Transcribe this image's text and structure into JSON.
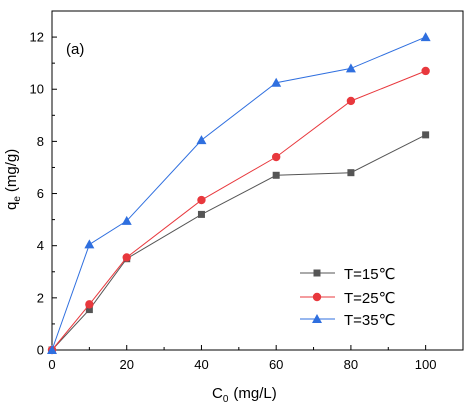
{
  "chart_data": {
    "type": "line",
    "panel_label": "(a)",
    "xlabel": "C",
    "xlabel_sub": "0",
    "xlabel_unit": "(mg/L)",
    "ylabel": "q",
    "ylabel_sub": "e",
    "ylabel_unit": "(mg/g)",
    "xlim": [
      0,
      110
    ],
    "ylim": [
      0,
      13
    ],
    "xticks": [
      0,
      20,
      40,
      60,
      80,
      100
    ],
    "yticks": [
      0,
      2,
      4,
      6,
      8,
      10,
      12
    ],
    "grid": false,
    "legend_position": "bottom-right",
    "series": [
      {
        "name": "T=15℃",
        "color": "#555555",
        "marker": "square",
        "points": [
          [
            0,
            0
          ],
          [
            10,
            1.55
          ],
          [
            20,
            3.5
          ],
          [
            40,
            5.2
          ],
          [
            60,
            6.7
          ],
          [
            80,
            6.8
          ],
          [
            100,
            8.25
          ]
        ]
      },
      {
        "name": "T=25℃",
        "color": "#e8383d",
        "marker": "circle",
        "points": [
          [
            0,
            0
          ],
          [
            10,
            1.75
          ],
          [
            20,
            3.55
          ],
          [
            40,
            5.75
          ],
          [
            60,
            7.4
          ],
          [
            80,
            9.55
          ],
          [
            100,
            10.7
          ]
        ]
      },
      {
        "name": "T=35℃",
        "color": "#2f6fdf",
        "marker": "triangle",
        "points": [
          [
            0,
            0
          ],
          [
            10,
            4.05
          ],
          [
            20,
            4.95
          ],
          [
            40,
            8.05
          ],
          [
            60,
            10.25
          ],
          [
            80,
            10.8
          ],
          [
            100,
            12.0
          ]
        ]
      }
    ]
  }
}
